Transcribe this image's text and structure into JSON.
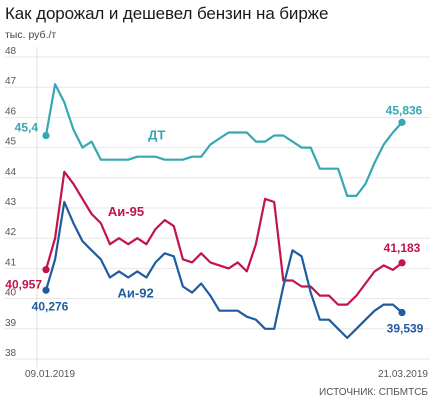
{
  "title": "Как дорожал и дешевел бензин на бирже",
  "unit": "тыс. руб./т",
  "source": "ИСТОЧНИК: СПБМТСБ",
  "chart_data": {
    "type": "line",
    "title": "Как дорожал и дешевел бензин на бирже",
    "ylabel": "тыс. руб./т",
    "ylim": [
      38,
      48
    ],
    "yticks": [
      "38",
      "39",
      "40",
      "41",
      "42",
      "43",
      "44",
      "45",
      "46",
      "47",
      "48"
    ],
    "x_start_label": "09.01.2019",
    "x_end_label": "21.03.2019",
    "grid": true,
    "series": [
      {
        "name": "ДТ",
        "color": "#35a8b3",
        "start_label": "45,4",
        "end_label": "45,836",
        "values": [
          45.4,
          47.1,
          46.5,
          45.6,
          45.0,
          45.2,
          44.6,
          44.6,
          44.6,
          44.6,
          44.7,
          44.7,
          44.7,
          44.6,
          44.6,
          44.6,
          44.7,
          44.7,
          45.1,
          45.3,
          45.5,
          45.5,
          45.5,
          45.2,
          45.2,
          45.4,
          45.4,
          45.2,
          45.0,
          45.0,
          44.3,
          44.3,
          44.3,
          43.4,
          43.4,
          43.8,
          44.5,
          45.1,
          45.5,
          45.836
        ]
      },
      {
        "name": "Аи-95",
        "color": "#c2134a",
        "start_label": "40,957",
        "end_label": "41,183",
        "values": [
          40.957,
          42.0,
          44.2,
          43.8,
          43.3,
          42.8,
          42.5,
          41.8,
          42.0,
          41.8,
          42.0,
          41.8,
          42.3,
          42.6,
          42.4,
          41.3,
          41.2,
          41.5,
          41.2,
          41.1,
          41.0,
          41.2,
          40.9,
          41.8,
          43.3,
          43.2,
          40.6,
          40.6,
          40.4,
          40.4,
          40.1,
          40.1,
          39.8,
          39.8,
          40.1,
          40.5,
          40.9,
          41.1,
          40.95,
          41.183
        ]
      },
      {
        "name": "Аи-92",
        "color": "#1f5b9e",
        "start_label": "40,276",
        "end_label": "39,539",
        "values": [
          40.276,
          41.3,
          43.2,
          42.5,
          41.9,
          41.6,
          41.3,
          40.7,
          40.9,
          40.7,
          40.9,
          40.7,
          41.2,
          41.5,
          41.4,
          40.4,
          40.2,
          40.5,
          40.1,
          39.6,
          39.6,
          39.6,
          39.4,
          39.3,
          39.0,
          39.0,
          40.4,
          41.6,
          41.4,
          40.2,
          39.3,
          39.3,
          39.0,
          38.7,
          39.0,
          39.3,
          39.6,
          39.8,
          39.8,
          39.539
        ]
      }
    ]
  }
}
